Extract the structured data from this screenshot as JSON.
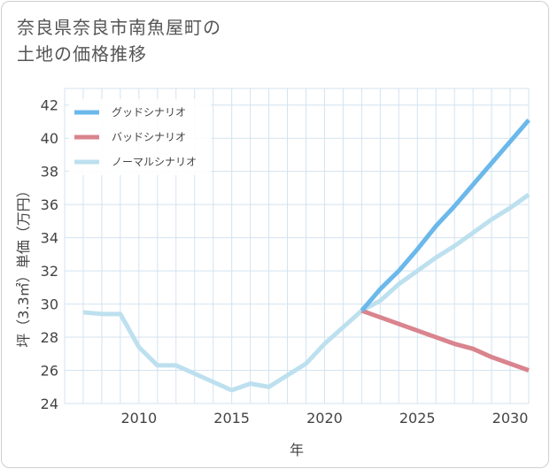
{
  "title_lines": [
    "奈良県奈良市南魚屋町の",
    "土地の価格推移"
  ],
  "colors": {
    "good": "#6bb8ea",
    "bad": "#d9848e",
    "normal": "#bde0ef",
    "grid": "#d4e3ef"
  },
  "chart_data": {
    "type": "line",
    "xlabel": "年",
    "ylabel": "坪（3.3㎡）単価（万円）",
    "xlim": [
      2006,
      2031
    ],
    "ylim": [
      24,
      43
    ],
    "x_ticks": [
      2010,
      2015,
      2020,
      2025,
      2030
    ],
    "x_tick_labels": [
      "2010",
      "2015",
      "2020",
      "2025",
      "2030"
    ],
    "y_ticks": [
      24,
      26,
      28,
      30,
      32,
      34,
      36,
      38,
      40,
      42
    ],
    "y_tick_labels": [
      "24",
      "26",
      "28",
      "30",
      "32",
      "34",
      "36",
      "38",
      "40",
      "42"
    ],
    "grid": true,
    "legend_position": "top-left",
    "series": [
      {
        "name": "グッドシナリオ",
        "color": "#6bb8ea",
        "x": [
          2022,
          2023,
          2024,
          2025,
          2026,
          2027,
          2028,
          2029,
          2030,
          2031
        ],
        "values": [
          29.6,
          30.9,
          32.0,
          33.3,
          34.7,
          35.9,
          37.2,
          38.5,
          39.8,
          41.1
        ]
      },
      {
        "name": "バッドシナリオ",
        "color": "#d9848e",
        "x": [
          2022,
          2023,
          2024,
          2025,
          2026,
          2027,
          2028,
          2029,
          2030,
          2031
        ],
        "values": [
          29.6,
          29.2,
          28.8,
          28.4,
          28.0,
          27.6,
          27.3,
          26.8,
          26.4,
          26.0
        ]
      },
      {
        "name": "ノーマルシナリオ",
        "color": "#bde0ef",
        "x": [
          2007,
          2008,
          2009,
          2010,
          2011,
          2012,
          2013,
          2014,
          2015,
          2016,
          2017,
          2018,
          2019,
          2020,
          2021,
          2022,
          2023,
          2024,
          2025,
          2026,
          2027,
          2028,
          2029,
          2030,
          2031
        ],
        "values": [
          29.5,
          29.4,
          29.4,
          27.4,
          26.3,
          26.3,
          25.8,
          25.3,
          24.8,
          25.2,
          25.0,
          25.7,
          26.4,
          27.6,
          28.6,
          29.6,
          30.2,
          31.2,
          32.0,
          32.8,
          33.5,
          34.3,
          35.1,
          35.8,
          36.6
        ]
      }
    ]
  }
}
